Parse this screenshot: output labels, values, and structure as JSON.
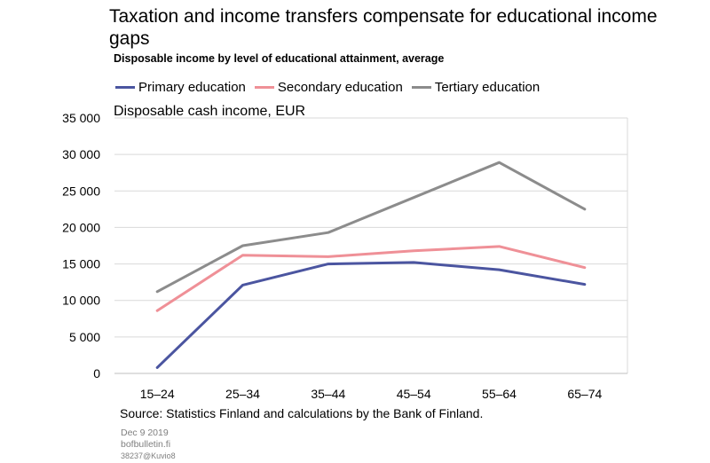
{
  "chart_data": {
    "type": "line",
    "title": "Taxation and income transfers compensate for educational income gaps",
    "subtitle": "Disposable income by level of educational attainment, average",
    "ylabel": "Disposable cash income, EUR",
    "xlabel": "",
    "categories": [
      "15–24",
      "25–34",
      "35–44",
      "45–54",
      "55–64",
      "65–74"
    ],
    "ylim": [
      0,
      35000
    ],
    "yticks": [
      0,
      5000,
      10000,
      15000,
      20000,
      25000,
      30000,
      35000
    ],
    "ytick_labels": [
      "0",
      "5 000",
      "10 000",
      "15 000",
      "20 000",
      "25 000",
      "30 000",
      "35 000"
    ],
    "grid": true,
    "legend_position": "top",
    "series": [
      {
        "name": "Primary education",
        "color": "#4b55a0",
        "values": [
          800,
          12100,
          15000,
          15200,
          14200,
          12200
        ]
      },
      {
        "name": "Secondary education",
        "color": "#ef9097",
        "values": [
          8600,
          16200,
          16000,
          16800,
          17400,
          14500
        ]
      },
      {
        "name": "Tertiary education",
        "color": "#8c8c8c",
        "values": [
          11200,
          17500,
          19300,
          24100,
          28900,
          22500
        ]
      }
    ]
  },
  "source": "Source: Statistics Finland and calculations by the Bank of Finland.",
  "meta": {
    "date": "Dec 9 2019",
    "site": "bofbulletin.fi",
    "code": "38237@Kuvio8"
  }
}
